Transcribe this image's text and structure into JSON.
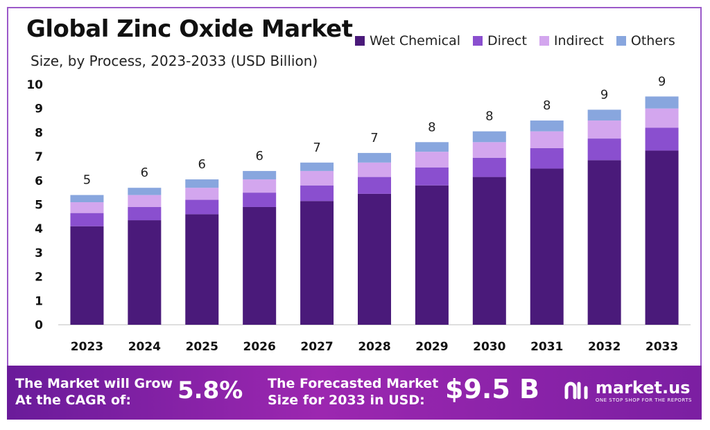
{
  "chart_data": {
    "type": "bar",
    "stacked": true,
    "title": "Global Zinc Oxide Market",
    "subtitle": "Size, by Process, 2023-2033 (USD Billion)",
    "categories": [
      "2023",
      "2024",
      "2025",
      "2026",
      "2027",
      "2028",
      "2029",
      "2030",
      "2031",
      "2032",
      "2033"
    ],
    "series": [
      {
        "name": "Wet Chemical",
        "color": "#4a1a7a",
        "values": [
          4.1,
          4.35,
          4.6,
          4.9,
          5.15,
          5.45,
          5.8,
          6.15,
          6.5,
          6.85,
          7.25
        ]
      },
      {
        "name": "Direct",
        "color": "#8a4fcf",
        "values": [
          0.55,
          0.55,
          0.6,
          0.6,
          0.65,
          0.7,
          0.75,
          0.8,
          0.85,
          0.9,
          0.95
        ]
      },
      {
        "name": "Indirect",
        "color": "#d3a6ee",
        "values": [
          0.45,
          0.5,
          0.5,
          0.55,
          0.6,
          0.6,
          0.65,
          0.65,
          0.7,
          0.75,
          0.8
        ]
      },
      {
        "name": "Others",
        "color": "#88a6de",
        "values": [
          0.3,
          0.3,
          0.35,
          0.35,
          0.35,
          0.4,
          0.4,
          0.45,
          0.45,
          0.45,
          0.5
        ]
      }
    ],
    "total_labels": [
      "5",
      "6",
      "6",
      "6",
      "7",
      "7",
      "8",
      "8",
      "8",
      "9",
      "9"
    ],
    "ylim": [
      0,
      10
    ],
    "yticks": [
      "0",
      "1",
      "2",
      "3",
      "4",
      "5",
      "6",
      "7",
      "8",
      "9",
      "10"
    ],
    "legend_position": "top-right",
    "grid": false
  },
  "footer": {
    "cagr_label_line1": "The Market will Grow",
    "cagr_label_line2": "At the CAGR of:",
    "cagr_value": "5.8%",
    "forecast_label_line1": "The Forecasted Market",
    "forecast_label_line2": "Size for 2033 in USD:",
    "forecast_value": "$9.5 B",
    "brand_name": "market.us",
    "brand_tagline": "ONE STOP SHOP FOR THE REPORTS"
  }
}
